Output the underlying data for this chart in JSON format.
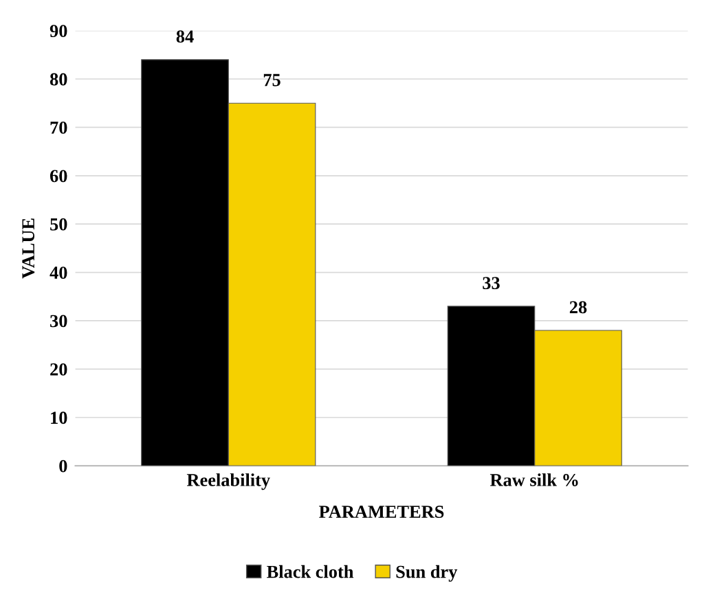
{
  "chart_data": {
    "type": "bar",
    "xlabel": "PARAMETERS",
    "ylabel": "VALUE",
    "categories": [
      "Reelability",
      "Raw silk %"
    ],
    "series": [
      {
        "name": "Black cloth",
        "color": "#000000",
        "values": [
          84,
          33
        ]
      },
      {
        "name": "Sun dry",
        "color": "#f5d000",
        "values": [
          75,
          28
        ]
      }
    ],
    "ylim": [
      0,
      90
    ],
    "yticks": [
      0,
      10,
      20,
      30,
      40,
      50,
      60,
      70,
      80,
      90
    ],
    "grid": "y",
    "legend": "bottom",
    "data_labels": true
  }
}
